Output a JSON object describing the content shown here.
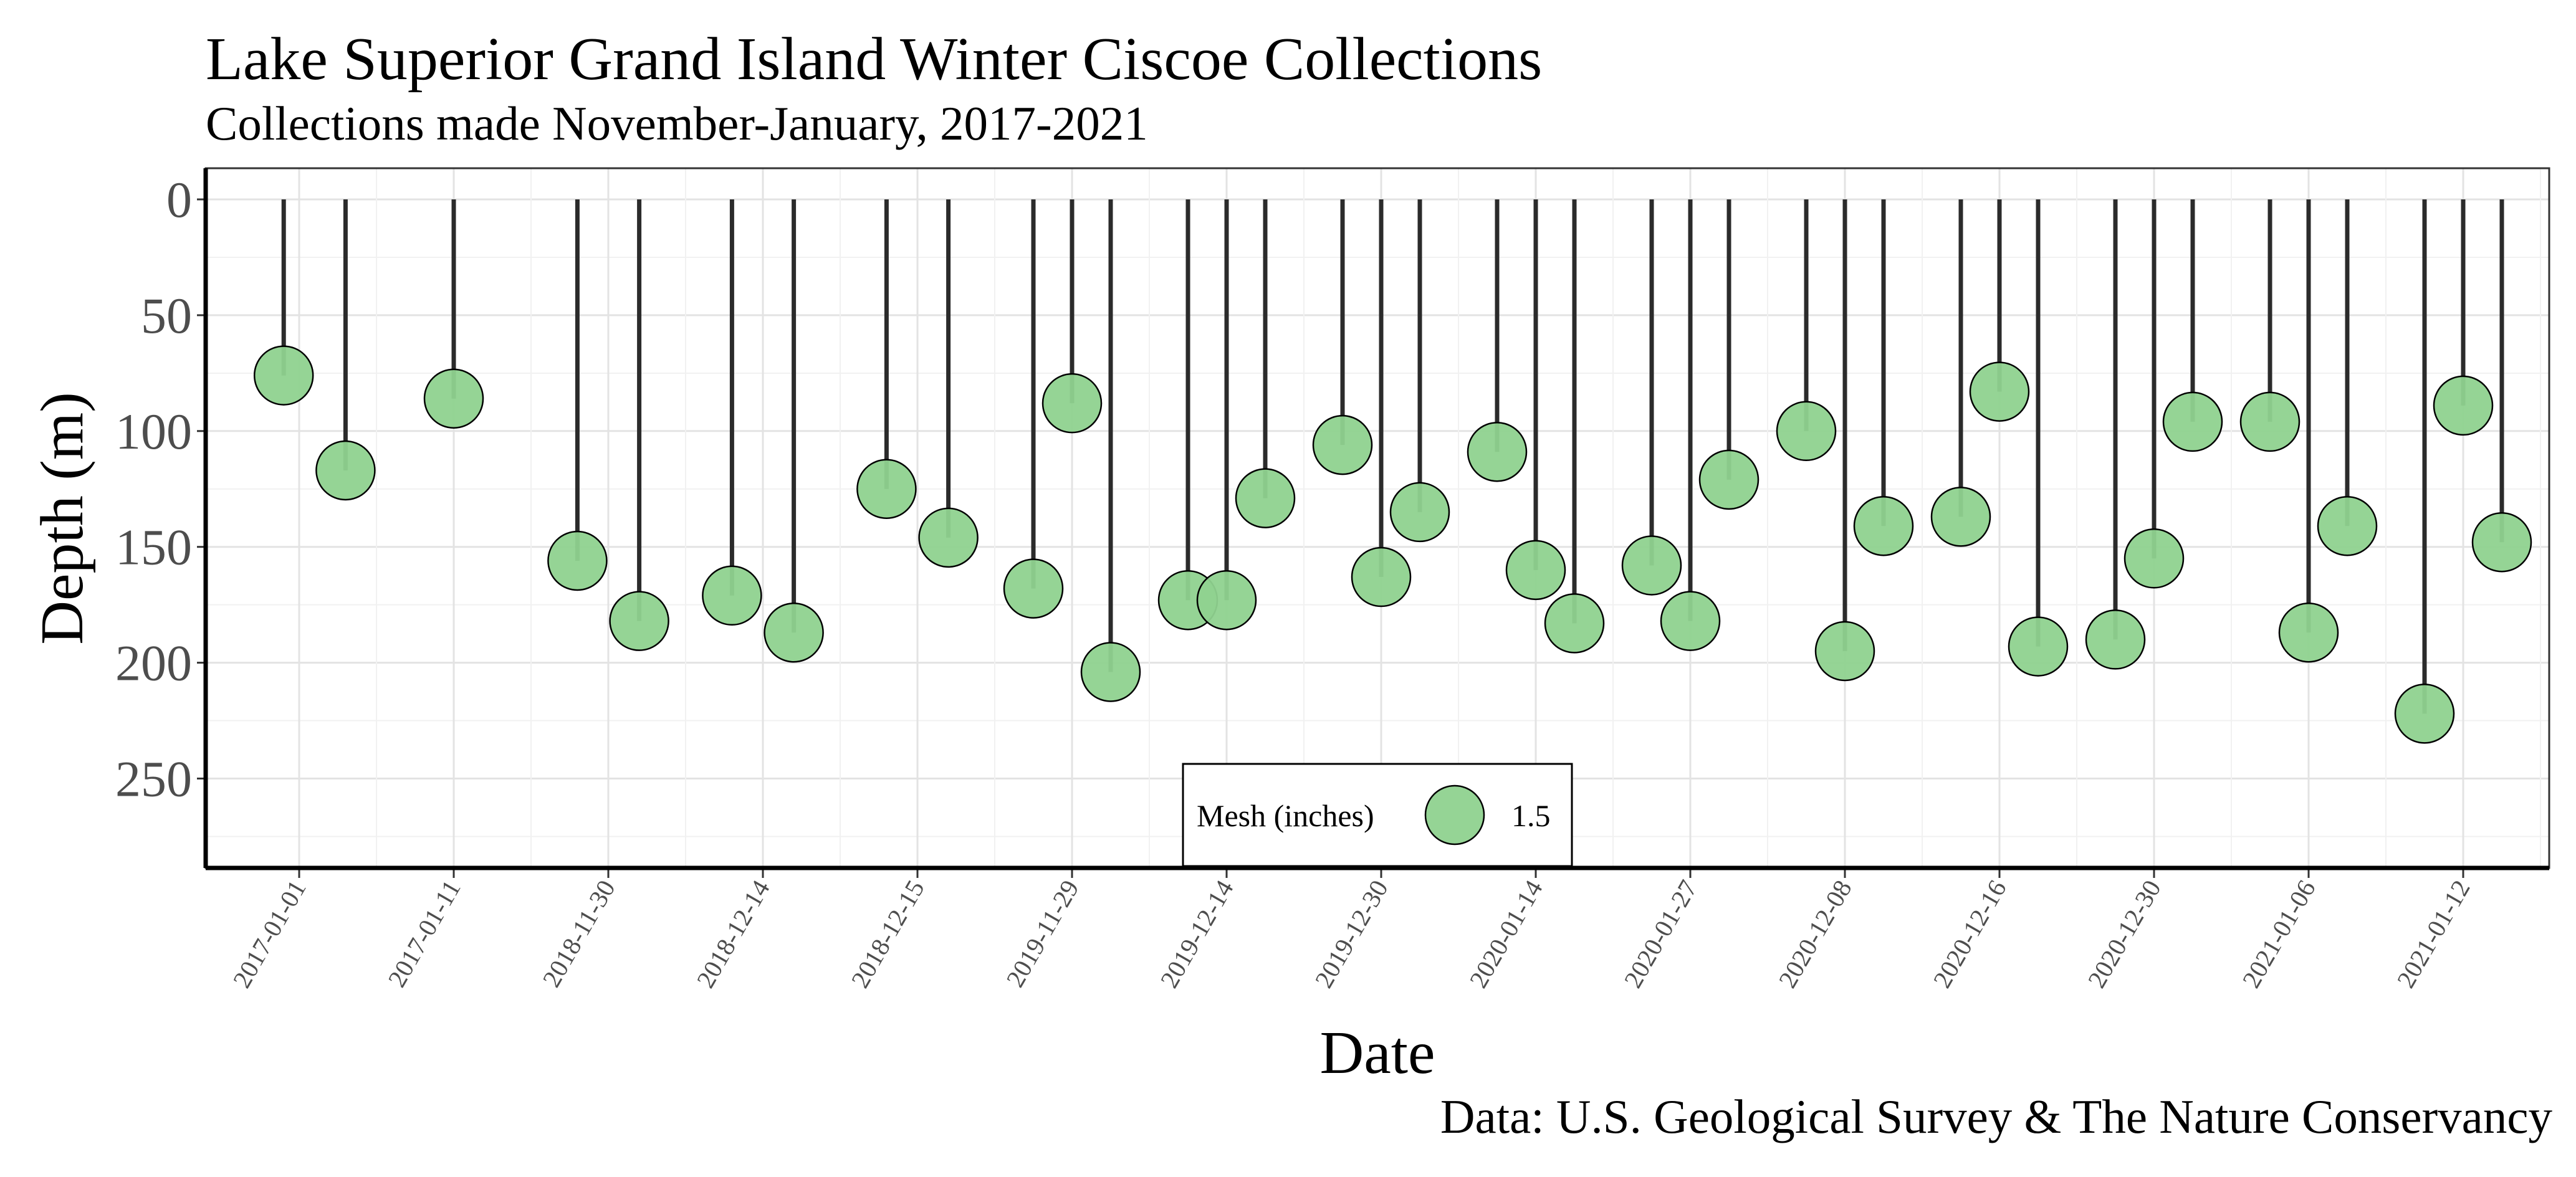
{
  "chart_data": {
    "type": "scatter",
    "title": "Lake Superior Grand Island Winter Ciscoe Collections",
    "subtitle": "Collections made November-January, 2017-2021",
    "xlabel": "Date",
    "ylabel": "Depth (m)",
    "caption": "Data: U.S. Geological Survey & The Nature Conservancy",
    "y_reversed": true,
    "ylim": [
      0,
      290
    ],
    "yticks": [
      0,
      50,
      100,
      150,
      200,
      250
    ],
    "grid": true,
    "x_tick_labels": [
      "2017-01-01",
      "2017-01-11",
      "2018-11-30",
      "2018-12-14",
      "2018-12-15",
      "2019-11-29",
      "2019-12-14",
      "2019-12-30",
      "2020-01-14",
      "2020-01-27",
      "2020-12-08",
      "2020-12-16",
      "2020-12-30",
      "2021-01-06",
      "2021-01-12"
    ],
    "marker_color": "#8fd28f",
    "legend": {
      "title": "Mesh (inches)",
      "entries": [
        "1.5"
      ],
      "position": "bottom-center"
    },
    "x": [
      0.9,
      1.3,
      2.0,
      2.8,
      3.2,
      3.8,
      4.2,
      4.8,
      5.2,
      5.75,
      6.0,
      6.25,
      6.75,
      7.0,
      7.25,
      7.75,
      8.0,
      8.25,
      8.75,
      9.0,
      9.25,
      9.75,
      10.0,
      10.25,
      10.75,
      11.0,
      11.25,
      11.75,
      12.0,
      12.25,
      12.75,
      13.0,
      13.25,
      13.75,
      14.0,
      14.25,
      14.75,
      15.0,
      15.25
    ],
    "y": [
      76,
      117,
      86,
      156,
      182,
      171,
      187,
      125,
      146,
      168,
      88,
      204,
      173,
      173,
      129,
      106,
      163,
      135,
      109,
      160,
      183,
      158,
      182,
      121,
      100,
      195,
      141,
      137,
      83,
      193,
      190,
      155,
      96,
      96,
      187,
      141,
      222,
      89,
      148
    ]
  }
}
